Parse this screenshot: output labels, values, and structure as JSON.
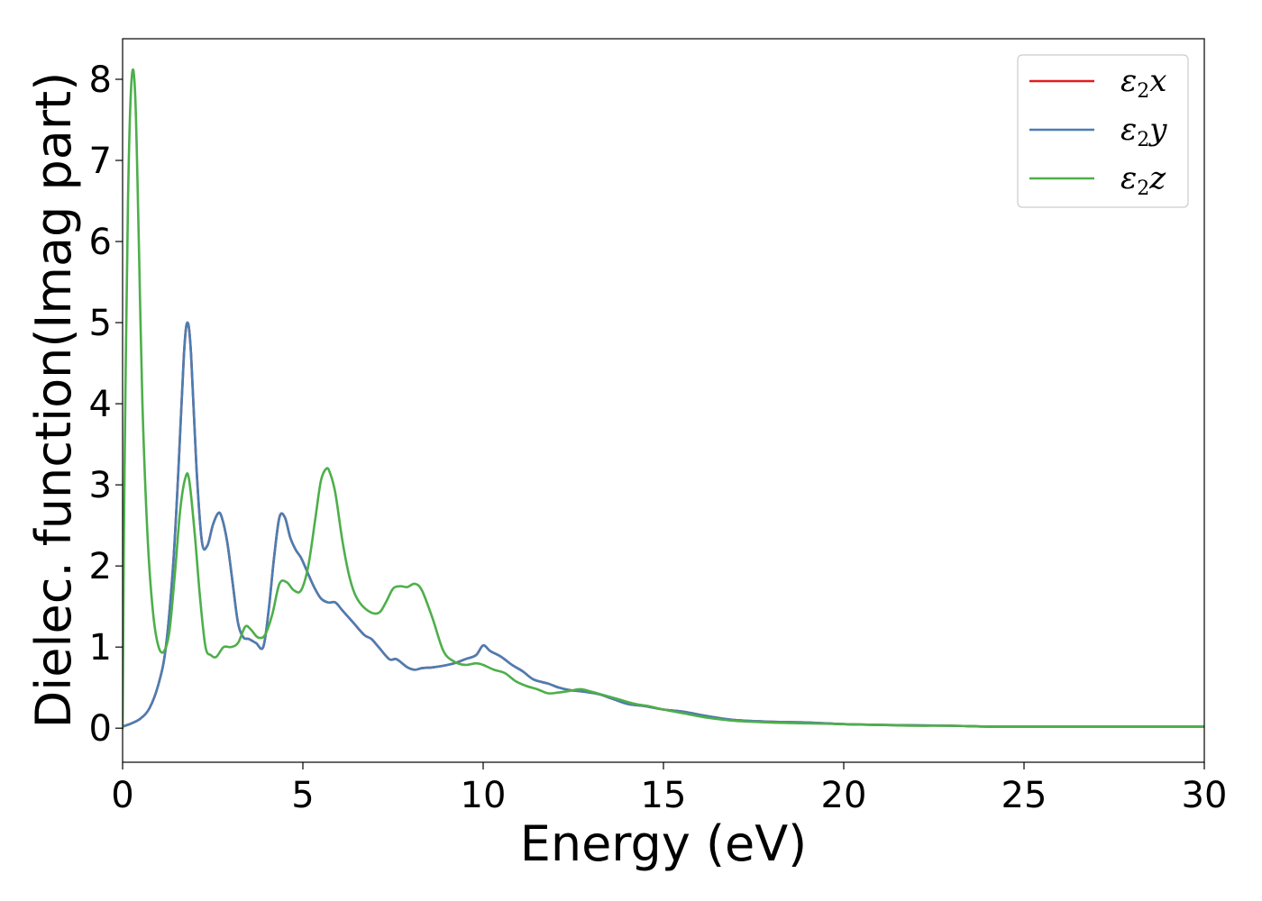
{
  "chart_data": {
    "type": "line",
    "title": "",
    "xlabel": "Energy (eV)",
    "ylabel": "Dielec. function(Imag part)",
    "xlim": [
      0,
      30
    ],
    "ylim": [
      -0.42,
      8.5
    ],
    "xticks": [
      0,
      5,
      10,
      15,
      20,
      25,
      30
    ],
    "yticks": [
      0,
      1,
      2,
      3,
      4,
      5,
      6,
      7,
      8
    ],
    "grid": false,
    "legend_position": "top-right",
    "series": [
      {
        "name": "ε2x",
        "legend_base": "ε",
        "legend_sub": "2",
        "legend_var": "x",
        "color": "#e41a1c",
        "x": [
          0,
          0.25,
          0.5,
          0.75,
          1.0,
          1.2,
          1.4,
          1.55,
          1.7,
          1.8,
          1.9,
          2.05,
          2.2,
          2.35,
          2.5,
          2.65,
          2.75,
          2.9,
          3.05,
          3.2,
          3.35,
          3.5,
          3.7,
          3.9,
          4.05,
          4.2,
          4.35,
          4.5,
          4.65,
          4.8,
          4.95,
          5.1,
          5.3,
          5.5,
          5.7,
          5.9,
          6.1,
          6.4,
          6.7,
          6.9,
          7.1,
          7.4,
          7.6,
          7.9,
          8.1,
          8.3,
          8.6,
          8.9,
          9.2,
          9.5,
          9.8,
          10.0,
          10.2,
          10.5,
          10.8,
          11.1,
          11.4,
          11.8,
          12.1,
          12.4,
          12.8,
          13.2,
          13.6,
          14.0,
          14.5,
          15.0,
          15.6,
          16.2,
          17.0,
          18.0,
          19.0,
          20.0,
          21.0,
          22.0,
          23.0,
          24.0,
          25.0,
          26.0,
          27.0,
          28.0,
          29.0,
          30.0
        ],
        "values": [
          0.02,
          0.06,
          0.12,
          0.25,
          0.55,
          1.0,
          2.0,
          3.2,
          4.6,
          5.0,
          4.6,
          3.2,
          2.3,
          2.25,
          2.5,
          2.65,
          2.6,
          2.3,
          1.8,
          1.3,
          1.12,
          1.1,
          1.05,
          1.0,
          1.45,
          2.1,
          2.6,
          2.6,
          2.35,
          2.2,
          2.1,
          1.95,
          1.75,
          1.6,
          1.55,
          1.55,
          1.45,
          1.3,
          1.15,
          1.1,
          1.0,
          0.85,
          0.85,
          0.75,
          0.72,
          0.74,
          0.75,
          0.77,
          0.8,
          0.85,
          0.9,
          1.02,
          0.95,
          0.88,
          0.78,
          0.7,
          0.6,
          0.55,
          0.5,
          0.47,
          0.45,
          0.42,
          0.36,
          0.3,
          0.27,
          0.23,
          0.2,
          0.15,
          0.1,
          0.08,
          0.07,
          0.05,
          0.04,
          0.035,
          0.03,
          0.02,
          0.02,
          0.02,
          0.02,
          0.02,
          0.02,
          0.02
        ]
      },
      {
        "name": "ε2y",
        "legend_base": "ε",
        "legend_sub": "2",
        "legend_var": "y",
        "color": "#4a7eb3",
        "x": [
          0,
          0.25,
          0.5,
          0.75,
          1.0,
          1.2,
          1.4,
          1.55,
          1.7,
          1.8,
          1.9,
          2.05,
          2.2,
          2.35,
          2.5,
          2.65,
          2.75,
          2.9,
          3.05,
          3.2,
          3.35,
          3.5,
          3.7,
          3.9,
          4.05,
          4.2,
          4.35,
          4.5,
          4.65,
          4.8,
          4.95,
          5.1,
          5.3,
          5.5,
          5.7,
          5.9,
          6.1,
          6.4,
          6.7,
          6.9,
          7.1,
          7.4,
          7.6,
          7.9,
          8.1,
          8.3,
          8.6,
          8.9,
          9.2,
          9.5,
          9.8,
          10.0,
          10.2,
          10.5,
          10.8,
          11.1,
          11.4,
          11.8,
          12.1,
          12.4,
          12.8,
          13.2,
          13.6,
          14.0,
          14.5,
          15.0,
          15.6,
          16.2,
          17.0,
          18.0,
          19.0,
          20.0,
          21.0,
          22.0,
          23.0,
          24.0,
          25.0,
          26.0,
          27.0,
          28.0,
          29.0,
          30.0
        ],
        "values": [
          0.02,
          0.06,
          0.12,
          0.25,
          0.55,
          1.0,
          2.0,
          3.2,
          4.6,
          5.0,
          4.6,
          3.2,
          2.3,
          2.25,
          2.5,
          2.65,
          2.6,
          2.3,
          1.8,
          1.3,
          1.12,
          1.1,
          1.05,
          1.0,
          1.45,
          2.1,
          2.6,
          2.6,
          2.35,
          2.2,
          2.1,
          1.95,
          1.75,
          1.6,
          1.55,
          1.55,
          1.45,
          1.3,
          1.15,
          1.1,
          1.0,
          0.85,
          0.85,
          0.75,
          0.72,
          0.74,
          0.75,
          0.77,
          0.8,
          0.85,
          0.9,
          1.02,
          0.95,
          0.88,
          0.78,
          0.7,
          0.6,
          0.55,
          0.5,
          0.47,
          0.45,
          0.42,
          0.36,
          0.3,
          0.27,
          0.23,
          0.2,
          0.15,
          0.1,
          0.08,
          0.07,
          0.05,
          0.04,
          0.035,
          0.03,
          0.02,
          0.02,
          0.02,
          0.02,
          0.02,
          0.02,
          0.02
        ]
      },
      {
        "name": "ε2z",
        "legend_base": "ε",
        "legend_sub": "2",
        "legend_var": "z",
        "color": "#4daf4a",
        "x": [
          0,
          0.05,
          0.15,
          0.25,
          0.35,
          0.45,
          0.55,
          0.7,
          0.85,
          1.0,
          1.15,
          1.3,
          1.45,
          1.6,
          1.75,
          1.85,
          2.0,
          2.15,
          2.3,
          2.45,
          2.6,
          2.8,
          3.0,
          3.2,
          3.4,
          3.55,
          3.75,
          3.95,
          4.15,
          4.35,
          4.55,
          4.75,
          4.95,
          5.15,
          5.35,
          5.5,
          5.65,
          5.75,
          5.9,
          6.1,
          6.3,
          6.5,
          6.8,
          7.1,
          7.3,
          7.5,
          7.7,
          7.9,
          8.1,
          8.3,
          8.6,
          8.9,
          9.2,
          9.5,
          9.8,
          10.0,
          10.3,
          10.6,
          10.9,
          11.2,
          11.5,
          11.8,
          12.1,
          12.4,
          12.7,
          13.0,
          13.4,
          13.8,
          14.2,
          14.6,
          15.0,
          15.6,
          16.2,
          17.0,
          18.0,
          19.0,
          20.0,
          21.0,
          22.0,
          23.0,
          24.0,
          25.0,
          26.0,
          27.0,
          28.0,
          29.0,
          30.0
        ],
        "values": [
          0.0,
          3.0,
          6.5,
          8.0,
          7.8,
          6.0,
          4.0,
          2.3,
          1.4,
          1.0,
          0.95,
          1.2,
          1.9,
          2.7,
          3.1,
          3.05,
          2.4,
          1.6,
          1.0,
          0.9,
          0.88,
          1.0,
          1.0,
          1.05,
          1.25,
          1.22,
          1.12,
          1.15,
          1.4,
          1.78,
          1.8,
          1.7,
          1.7,
          2.0,
          2.6,
          3.05,
          3.2,
          3.15,
          2.9,
          2.3,
          1.85,
          1.6,
          1.45,
          1.42,
          1.55,
          1.72,
          1.75,
          1.74,
          1.78,
          1.7,
          1.35,
          0.95,
          0.82,
          0.78,
          0.8,
          0.78,
          0.72,
          0.68,
          0.58,
          0.52,
          0.48,
          0.43,
          0.44,
          0.46,
          0.48,
          0.45,
          0.4,
          0.35,
          0.3,
          0.27,
          0.23,
          0.18,
          0.13,
          0.09,
          0.07,
          0.06,
          0.05,
          0.04,
          0.03,
          0.03,
          0.02,
          0.02,
          0.02,
          0.02,
          0.02,
          0.02,
          0.02
        ]
      }
    ]
  }
}
